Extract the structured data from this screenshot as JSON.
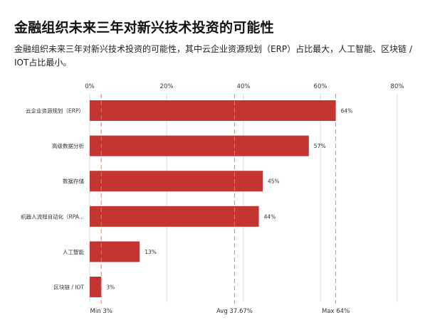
{
  "title": "金融组织未来三年对新兴技术投资的可能性",
  "subtitle": "金融组织未来三年对新兴技术投资的可能性，其中云企业资源规划（ERP）占比最大，人工智能、区块链 / IOT占比最小。",
  "colors": {
    "bar": "#c43431",
    "ref_line": "#e07a78",
    "grid": "#d9d9d9"
  },
  "chart_data": {
    "type": "bar",
    "orientation": "horizontal",
    "categories": [
      "云企业资源规划（ERP）",
      "高级数据分析",
      "数据存储",
      "机器人流程自动化（RPA...",
      "人工智能",
      "区块链 / IOT"
    ],
    "values": [
      64,
      57,
      45,
      44,
      13,
      3
    ],
    "value_labels": [
      "64%",
      "57%",
      "45%",
      "44%",
      "13%",
      "3%"
    ],
    "xlim": [
      0,
      80
    ],
    "x_ticks": [
      0,
      20,
      40,
      60,
      80
    ],
    "x_tick_labels": [
      "0%",
      "20%",
      "40%",
      "60%",
      "80%"
    ],
    "x_axis_position": "top",
    "grid": true,
    "reference_lines": [
      {
        "value": 3,
        "label": "Min 3%"
      },
      {
        "value": 37.67,
        "label": "Avg 37.67%"
      },
      {
        "value": 64,
        "label": "Max 64%"
      }
    ]
  }
}
